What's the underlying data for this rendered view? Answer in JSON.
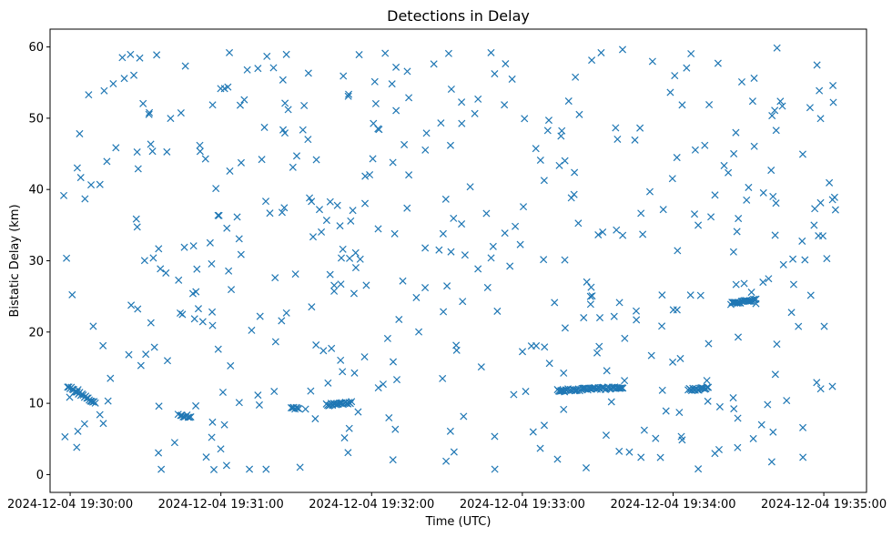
{
  "chart_data": {
    "type": "scatter",
    "title": "Detections in Delay",
    "xlabel": "Time (UTC)",
    "ylabel": "Bistatic Delay (km)",
    "marker": "x",
    "color": "#1f77b4",
    "grid": false,
    "xlim": [
      "2024-12-04 19:29:52",
      "2024-12-04 19:35:17"
    ],
    "ylim": [
      -2.5,
      62.5
    ],
    "xticks": [
      "2024-12-04 19:30:00",
      "2024-12-04 19:31:00",
      "2024-12-04 19:32:00",
      "2024-12-04 19:33:00",
      "2024-12-04 19:34:00",
      "2024-12-04 19:35:00"
    ],
    "yticks": [
      0,
      10,
      20,
      30,
      40,
      50,
      60
    ],
    "x_range": [
      "2024-12-04 19:29:57",
      "2024-12-04 19:35:05"
    ],
    "approx_point_count": 620,
    "tracks": [
      {
        "start": "2024-12-04 19:29:59",
        "end": "2024-12-04 19:30:10",
        "y_start": 12.4,
        "y_end": 10.0
      },
      {
        "start": "2024-12-04 19:30:44",
        "end": "2024-12-04 19:30:48",
        "y_start": 8.2,
        "y_end": 8.2
      },
      {
        "start": "2024-12-04 19:31:28",
        "end": "2024-12-04 19:31:31",
        "y_start": 9.3,
        "y_end": 9.4
      },
      {
        "start": "2024-12-04 19:31:42",
        "end": "2024-12-04 19:31:52",
        "y_start": 9.8,
        "y_end": 10.1
      },
      {
        "start": "2024-12-04 19:33:14",
        "end": "2024-12-04 19:33:40",
        "y_start": 11.8,
        "y_end": 12.2
      },
      {
        "start": "2024-12-04 19:34:06",
        "end": "2024-12-04 19:34:14",
        "y_start": 11.9,
        "y_end": 12.1
      },
      {
        "start": "2024-12-04 19:34:23",
        "end": "2024-12-04 19:34:33",
        "y_start": 24.0,
        "y_end": 24.6
      }
    ]
  }
}
